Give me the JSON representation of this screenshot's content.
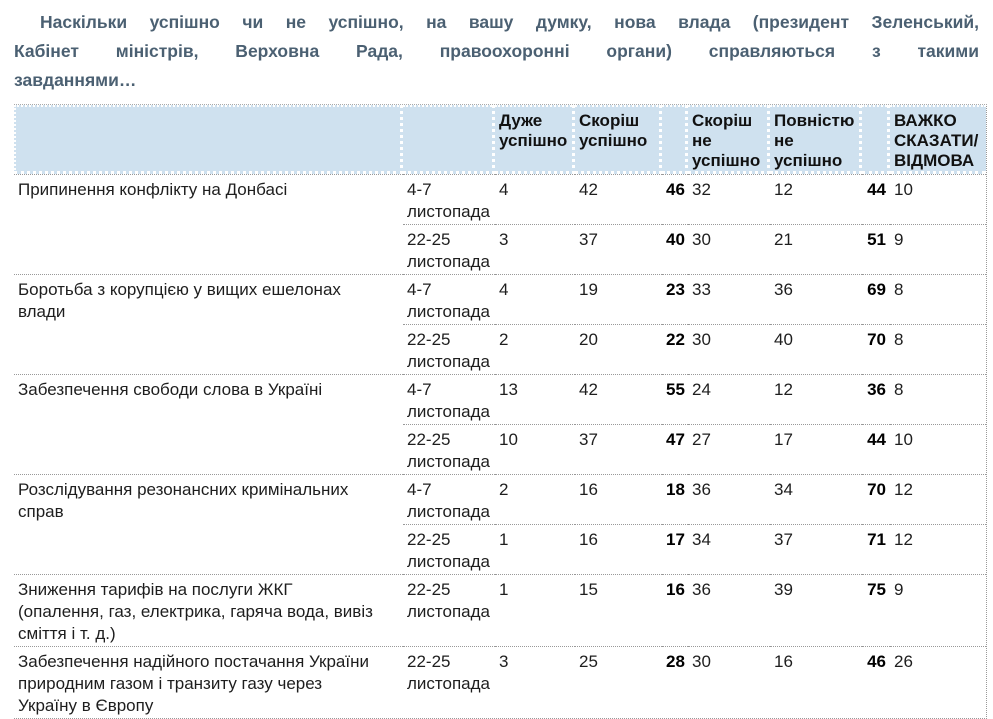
{
  "title": "Наскільки успішно чи не успішно, на вашу думку, нова влада (президент Зеленський,\nКабінет міністрів, Верховна Рада, правоохоронні органи) справляються з такими\nзавданнями…",
  "colors": {
    "header_background": "#cfe1ef",
    "title_text": "#4b6072",
    "body_text": "#1e1e1e",
    "dotted_border": "#999999"
  },
  "table": {
    "column_headers": [
      {
        "key": "task",
        "label": ""
      },
      {
        "key": "date",
        "label": ""
      },
      {
        "key": "very_successful",
        "label": "Дуже успішно"
      },
      {
        "key": "rather_successful",
        "label": "Скоріш успішно"
      },
      {
        "key": "successful_total",
        "label": ""
      },
      {
        "key": "rather_unsuccessful",
        "label": "Скоріш не успішно"
      },
      {
        "key": "completely_unsuccessful",
        "label": "Повністю не успішно"
      },
      {
        "key": "unsuccessful_total",
        "label": ""
      },
      {
        "key": "hard_to_say",
        "label": "ВАЖКО СКАЗАТИ/ ВІДМОВА"
      }
    ],
    "groups": [
      {
        "task": "Припинення конфлікту на Донбасі",
        "rows": [
          {
            "date": "4-7 листопада",
            "very_successful": 4,
            "rather_successful": 42,
            "successful_total": 46,
            "rather_unsuccessful": 32,
            "completely_unsuccessful": 12,
            "unsuccessful_total": 44,
            "hard_to_say": 10
          },
          {
            "date": "22-25 листопада",
            "very_successful": 3,
            "rather_successful": 37,
            "successful_total": 40,
            "rather_unsuccessful": 30,
            "completely_unsuccessful": 21,
            "unsuccessful_total": 51,
            "hard_to_say": 9
          }
        ]
      },
      {
        "task": "Боротьба з корупцією у вищих ешелонах\nвлади",
        "rows": [
          {
            "date": "4-7 листопада",
            "very_successful": 4,
            "rather_successful": 19,
            "successful_total": 23,
            "rather_unsuccessful": 33,
            "completely_unsuccessful": 36,
            "unsuccessful_total": 69,
            "hard_to_say": 8
          },
          {
            "date": "22-25 листопада",
            "very_successful": 2,
            "rather_successful": 20,
            "successful_total": 22,
            "rather_unsuccessful": 30,
            "completely_unsuccessful": 40,
            "unsuccessful_total": 70,
            "hard_to_say": 8
          }
        ]
      },
      {
        "task": "Забезпечення свободи слова в Україні",
        "rows": [
          {
            "date": "4-7 листопада",
            "very_successful": 13,
            "rather_successful": 42,
            "successful_total": 55,
            "rather_unsuccessful": 24,
            "completely_unsuccessful": 12,
            "unsuccessful_total": 36,
            "hard_to_say": 8
          },
          {
            "date": "22-25 листопада",
            "very_successful": 10,
            "rather_successful": 37,
            "successful_total": 47,
            "rather_unsuccessful": 27,
            "completely_unsuccessful": 17,
            "unsuccessful_total": 44,
            "hard_to_say": 10
          }
        ]
      },
      {
        "task": "Розслідування резонансних кримінальних\nсправ",
        "rows": [
          {
            "date": "4-7 листопада",
            "very_successful": 2,
            "rather_successful": 16,
            "successful_total": 18,
            "rather_unsuccessful": 36,
            "completely_unsuccessful": 34,
            "unsuccessful_total": 70,
            "hard_to_say": 12
          },
          {
            "date": "22-25 листопада",
            "very_successful": 1,
            "rather_successful": 16,
            "successful_total": 17,
            "rather_unsuccessful": 34,
            "completely_unsuccessful": 37,
            "unsuccessful_total": 71,
            "hard_to_say": 12
          }
        ]
      },
      {
        "task": "Зниження тарифів на послуги ЖКГ\n(опалення, газ, електрика, гаряча вода, вивіз\nсміття і т. д.)",
        "rows": [
          {
            "date": "22-25 листопада",
            "very_successful": 1,
            "rather_successful": 15,
            "successful_total": 16,
            "rather_unsuccessful": 36,
            "completely_unsuccessful": 39,
            "unsuccessful_total": 75,
            "hard_to_say": 9
          }
        ]
      },
      {
        "task": "Забезпечення надійного постачання України\nприродним газом і транзиту газу через\nУкраїну в Європу",
        "rows": [
          {
            "date": "22-25 листопада",
            "very_successful": 3,
            "rather_successful": 25,
            "successful_total": 28,
            "rather_unsuccessful": 30,
            "completely_unsuccessful": 16,
            "unsuccessful_total": 46,
            "hard_to_say": 26
          }
        ]
      }
    ]
  }
}
